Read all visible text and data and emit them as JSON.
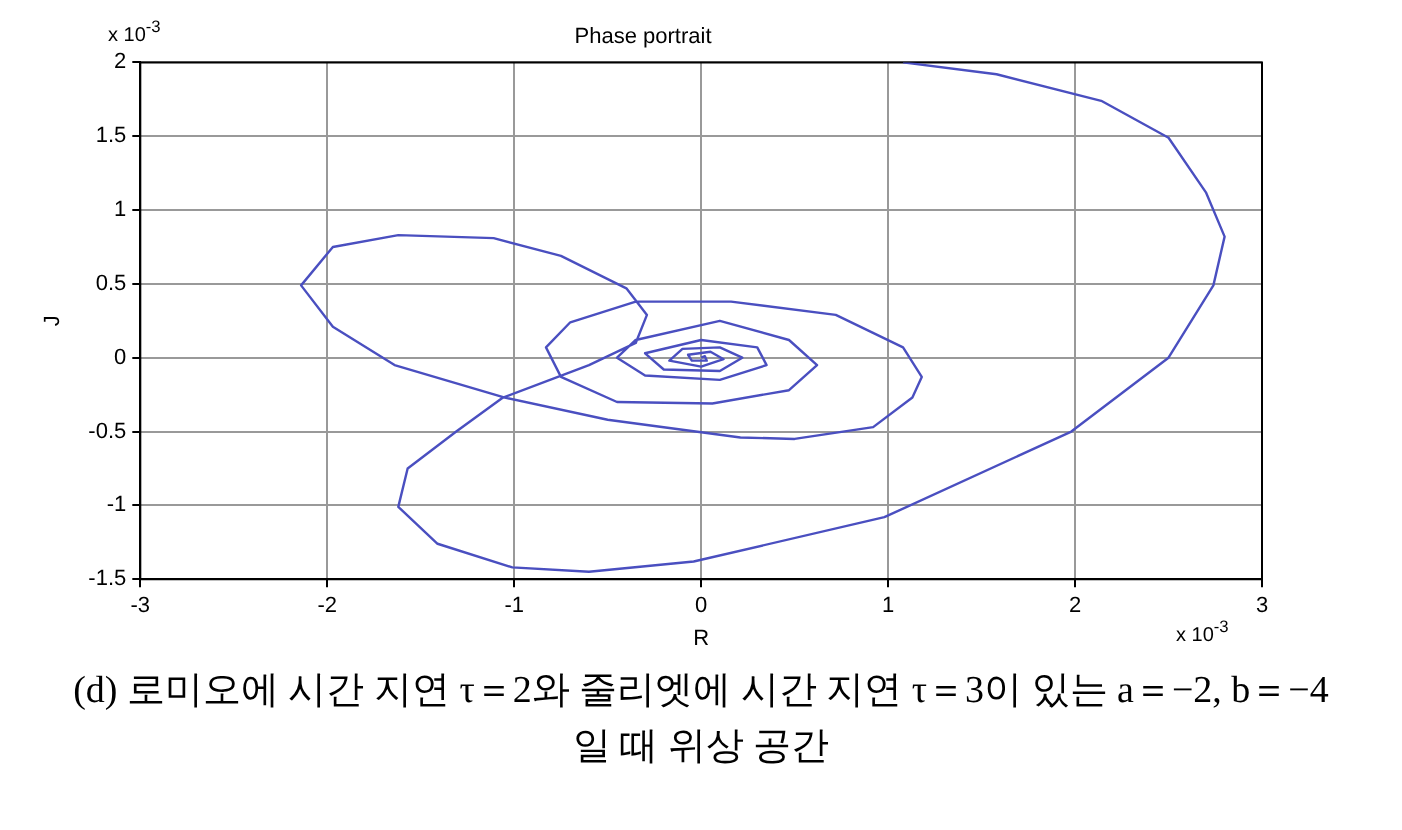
{
  "chart_data": {
    "type": "line",
    "title": "Phase portrait",
    "xlabel": "R",
    "ylabel": "J",
    "xlim": [
      -3,
      3
    ],
    "ylim": [
      -1.5,
      2
    ],
    "xticks": [
      -3,
      -2,
      -1,
      0,
      1,
      2,
      3
    ],
    "yticks": [
      -1.5,
      -1,
      -0.5,
      0,
      0.5,
      1,
      1.5,
      2
    ],
    "grid": true,
    "marker": "none",
    "line_style": "solid",
    "legend": false,
    "annotations": [
      "x 10$^{-3}$",
      "x 10$^{-3}$",
      "(d) 로미오에 시간 지연 τ＝2와 줄리엣에 시간 지연 τ＝3이 있는 a＝−2, b＝−4 일 때 위상 공간"
    ],
    "series": [
      {
        "color": "#4a4fc0",
        "x": [
          1.08,
          1.58,
          2.14,
          2.5,
          2.7,
          2.8,
          2.74,
          2.5,
          1.98,
          0.98,
          -0.04,
          -0.6,
          -1.01,
          -1.41,
          -1.62,
          -1.57,
          -1.31,
          -1.06,
          -0.6,
          -0.35,
          -0.29,
          -0.4,
          -0.75,
          -1.11,
          -1.62,
          -1.97,
          -2.14,
          -1.97,
          -1.64,
          -1.05,
          -0.5,
          0.21,
          0.5,
          0.92,
          1.13,
          1.18,
          1.08,
          0.72,
          0.16,
          -0.35,
          -0.7,
          -0.83,
          -0.75,
          -0.45,
          0.06,
          0.47,
          0.62,
          0.47,
          0.1,
          -0.35,
          -0.45,
          -0.3,
          0.1,
          0.35,
          0.3,
          0,
          -0.3,
          -0.2,
          0.1,
          0.22,
          0.1,
          -0.1,
          -0.17,
          0,
          0.12,
          0.05,
          -0.07,
          -0.05,
          0.03,
          0.02,
          0
        ],
        "values": [
          2,
          1.92,
          1.74,
          1.49,
          1.12,
          0.82,
          0.49,
          0,
          -0.5,
          -1.08,
          -1.38,
          -1.45,
          -1.42,
          -1.26,
          -1.01,
          -0.75,
          -0.5,
          -0.27,
          -0.05,
          0.1,
          0.29,
          0.47,
          0.69,
          0.81,
          0.83,
          0.75,
          0.49,
          0.21,
          -0.05,
          -0.27,
          -0.42,
          -0.54,
          -0.55,
          -0.47,
          -0.27,
          -0.13,
          0.07,
          0.29,
          0.38,
          0.38,
          0.24,
          0.07,
          -0.13,
          -0.3,
          -0.31,
          -0.22,
          -0.05,
          0.12,
          0.25,
          0.12,
          0,
          -0.12,
          -0.15,
          -0.05,
          0.07,
          0.12,
          0.03,
          -0.08,
          -0.09,
          0,
          0.07,
          0.06,
          -0.02,
          -0.06,
          -0.01,
          0.04,
          0.02,
          -0.02,
          -0.02,
          0.01,
          0
        ]
      }
    ]
  }
}
